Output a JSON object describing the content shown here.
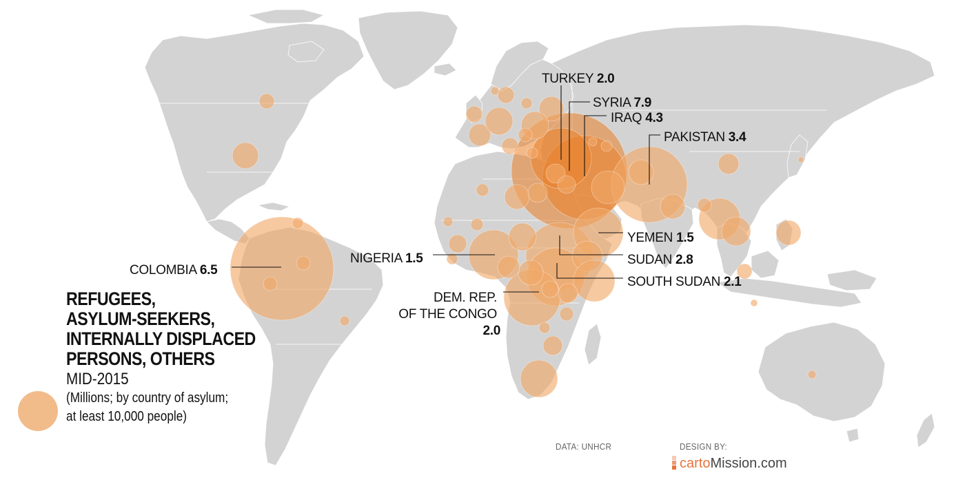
{
  "title_lines": [
    "REFUGEES,",
    "ASYLUM-SEEKERS,",
    "INTERNALLY DISPLACED",
    "PERSONS, OTHERS"
  ],
  "subtitle": "MID-2015",
  "note_lines": [
    "(Millions; by country of asylum;",
    "at least 10,000 people)"
  ],
  "source": "DATA: UNHCR",
  "design_label": "DESIGN BY:",
  "logo": {
    "part1": "carto",
    "part2": "Mission.com"
  },
  "colors": {
    "bubble": "#f0a868",
    "bubble_hot": "#ea7f28",
    "land": "#d3d3d3",
    "logo_accent": "#e8743c"
  },
  "labels": [
    {
      "id": "turkey",
      "name": "TURKEY",
      "value": "2.0"
    },
    {
      "id": "syria",
      "name": "SYRIA",
      "value": "7.9"
    },
    {
      "id": "iraq",
      "name": "IRAQ",
      "value": "4.3"
    },
    {
      "id": "pakistan",
      "name": "PAKISTAN",
      "value": "3.4"
    },
    {
      "id": "yemen",
      "name": "YEMEN",
      "value": "1.5"
    },
    {
      "id": "sudan",
      "name": "SUDAN",
      "value": "2.8"
    },
    {
      "id": "south_sudan",
      "name": "SOUTH SUDAN",
      "value": "2.1"
    },
    {
      "id": "nigeria",
      "name": "NIGERIA",
      "value": "1.5"
    },
    {
      "id": "drc",
      "name_lines": [
        "DEM. REP.",
        "OF THE CONGO"
      ],
      "value": "2.0"
    },
    {
      "id": "colombia",
      "name": "COLOMBIA",
      "value": "6.5"
    }
  ]
}
